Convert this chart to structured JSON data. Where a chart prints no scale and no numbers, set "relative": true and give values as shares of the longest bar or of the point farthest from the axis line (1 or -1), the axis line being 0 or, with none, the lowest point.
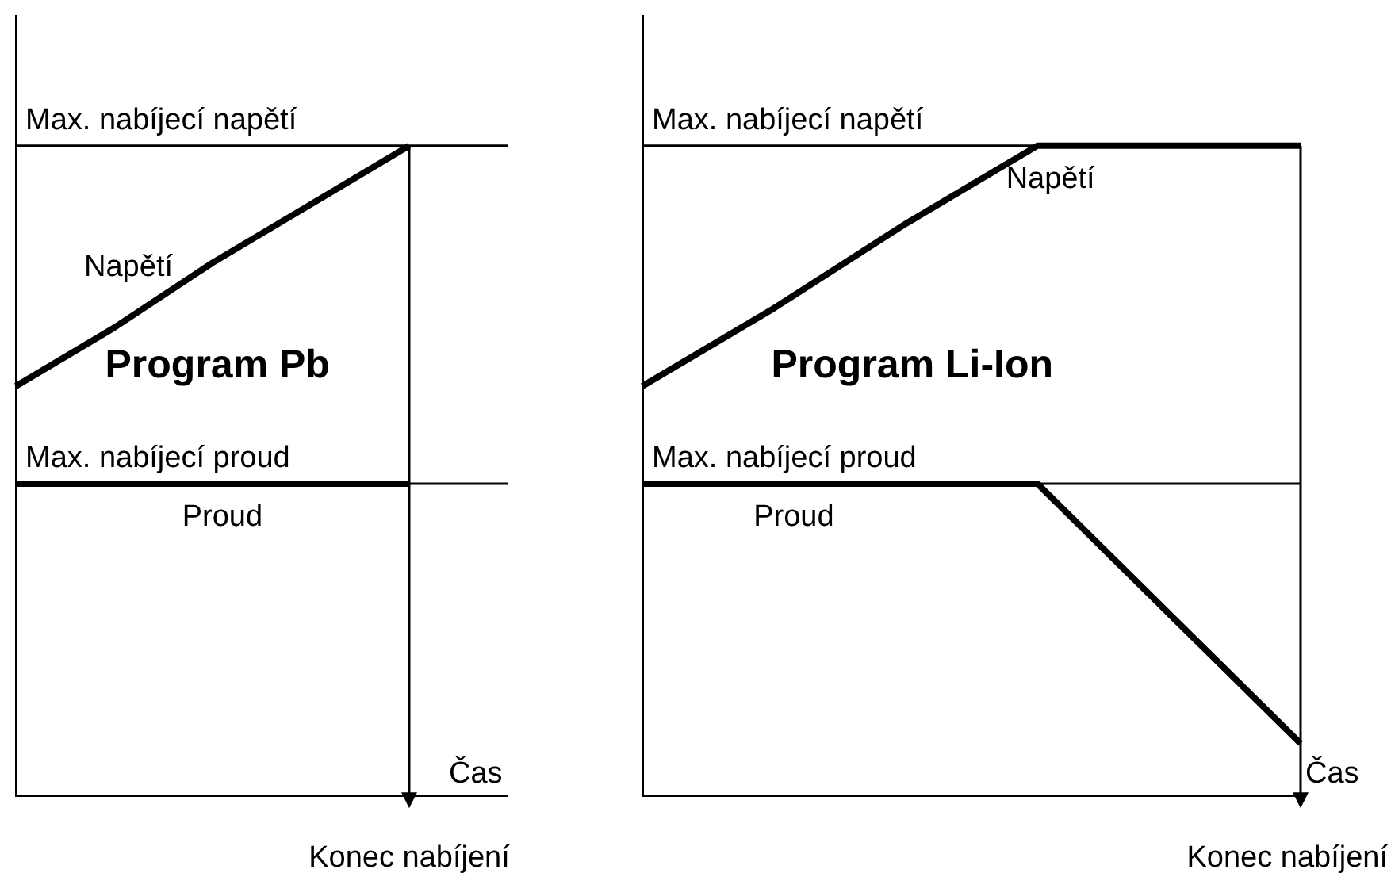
{
  "chart_data": [
    {
      "type": "line",
      "title": "Program Pb",
      "xlabel": "Čas",
      "categories": [
        null,
        null,
        null,
        null,
        null,
        null
      ],
      "relative": true,
      "legend": false,
      "grid": false,
      "marker": "none",
      "line_style": "solid",
      "series": [
        {
          "name": "Napětí",
          "color": "#000000",
          "values": [
            0.63,
            0.72,
            0.82,
            0.91,
            1,
            null
          ]
        },
        {
          "name": "Proud",
          "color": "#000000",
          "values": [
            0.48,
            0.48,
            0.48,
            0.48,
            0.48,
            null
          ]
        }
      ],
      "ref_lines": [
        {
          "axis": "y",
          "value": 1,
          "label": "Max. nabíjecí napětí",
          "color": "#000000"
        },
        {
          "axis": "y",
          "value": 0.48,
          "label": "Max. nabíjecí proud",
          "color": "#000000"
        }
      ],
      "annotations": [
        "Konec nabíjení"
      ]
    },
    {
      "type": "line",
      "title": "Program Li-Ion",
      "xlabel": "Čas",
      "categories": [
        null,
        null,
        null,
        null,
        null,
        null
      ],
      "relative": true,
      "legend": false,
      "grid": false,
      "marker": "none",
      "line_style": "solid",
      "series": [
        {
          "name": "Napětí",
          "color": "#000000",
          "values": [
            0.63,
            0.75,
            0.88,
            1,
            1,
            1
          ]
        },
        {
          "name": "Proud",
          "color": "#000000",
          "values": [
            0.48,
            0.48,
            0.48,
            0.48,
            0.28,
            0.08
          ]
        }
      ],
      "ref_lines": [
        {
          "axis": "y",
          "value": 1,
          "label": "Max. nabíjecí napětí",
          "color": "#000000"
        },
        {
          "axis": "y",
          "value": 0.48,
          "label": "Max. nabíjecí proud",
          "color": "#000000"
        }
      ],
      "annotations": [
        "Konec nabíjení"
      ]
    }
  ]
}
